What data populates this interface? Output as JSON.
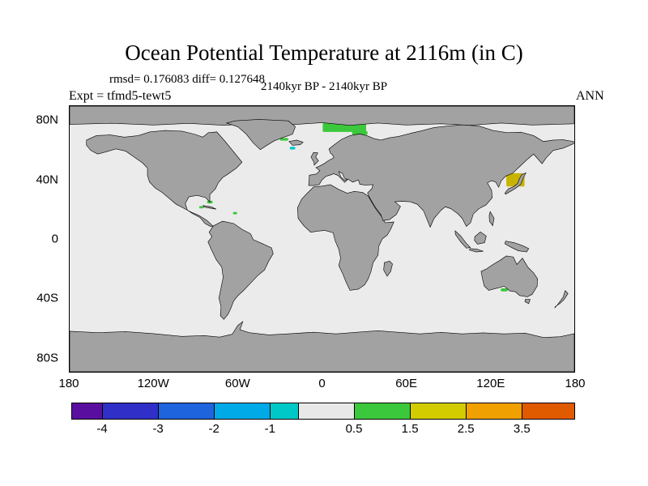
{
  "header": {
    "title": "Ocean Potential Temperature at 2116m (in C)",
    "stats": "rmsd= 0.176083 diff= 0.127648",
    "period": "2140kyr BP - 2140kyr BP",
    "experiment": "Expt = tfmd5-tewt5",
    "season": "ANN"
  },
  "colors": {
    "ocean": "#EBEBEB",
    "land": "#A2A2A2",
    "coastline": "#000000",
    "background": "#FFFFFF"
  },
  "map": {
    "lat_ticks": [
      {
        "label": "80N",
        "lat": 80
      },
      {
        "label": "40N",
        "lat": 40
      },
      {
        "label": "0",
        "lat": 0
      },
      {
        "label": "40S",
        "lat": -40
      },
      {
        "label": "80S",
        "lat": -80
      }
    ],
    "lon_ticks": [
      {
        "label": "180",
        "lon": -180
      },
      {
        "label": "120W",
        "lon": -120
      },
      {
        "label": "60W",
        "lon": -60
      },
      {
        "label": "0",
        "lon": 0
      },
      {
        "label": "60E",
        "lon": 60
      },
      {
        "label": "120E",
        "lon": 120
      },
      {
        "label": "180",
        "lon": 180
      }
    ]
  },
  "colorbar": {
    "segments": [
      {
        "color": "#5A0EA0",
        "width": 0.55,
        "range": "< -4"
      },
      {
        "color": "#3030C8",
        "width": 1,
        "range": "-4 to -3"
      },
      {
        "color": "#1E64DC",
        "width": 1,
        "range": "-3 to -2"
      },
      {
        "color": "#00AAE6",
        "width": 1,
        "range": "-2 to -1"
      },
      {
        "color": "#00C8C8",
        "width": 0.5,
        "range": "-1 to -0.5"
      },
      {
        "color": "#E8E8E8",
        "width": 1,
        "range": "-0.5 to 0.5"
      },
      {
        "color": "#3CC83C",
        "width": 1,
        "range": "0.5 to 1.5"
      },
      {
        "color": "#D2CC00",
        "width": 1,
        "range": "1.5 to 2.5"
      },
      {
        "color": "#F0A000",
        "width": 1,
        "range": "2.5 to 3.5"
      },
      {
        "color": "#E05A00",
        "width": 0.95,
        "range": "> 3.5"
      }
    ],
    "ticks": [
      {
        "label": "-4",
        "boundary": 1
      },
      {
        "label": "-3",
        "boundary": 2
      },
      {
        "label": "-2",
        "boundary": 3
      },
      {
        "label": "-1",
        "boundary": 4
      },
      {
        "label": "0.5",
        "boundary": 6
      },
      {
        "label": "1.5",
        "boundary": 7
      },
      {
        "label": "2.5",
        "boundary": 8
      },
      {
        "label": "3.5",
        "boundary": 9
      }
    ]
  },
  "chart_data": {
    "type": "heatmap",
    "title": "Ocean Potential Temperature at 2116m (in C)",
    "units": "C",
    "depth_m": 2116,
    "season": "ANN",
    "experiment_difference": "tfmd5-tewt5",
    "period": "2140kyr BP - 2140kyr BP",
    "rmsd": 0.176083,
    "diff": 0.127648,
    "contour_levels": [
      -4,
      -3,
      -2,
      -1,
      -0.5,
      0.5,
      1.5,
      2.5,
      3.5
    ],
    "x_axis": {
      "tick_labels": [
        "180",
        "120W",
        "60W",
        "0",
        "60E",
        "120E",
        "180"
      ],
      "range_deg": [
        -180,
        180
      ]
    },
    "y_axis": {
      "tick_labels": [
        "80N",
        "40N",
        "0",
        "40S",
        "80S"
      ],
      "range_deg": [
        -90,
        90
      ]
    },
    "background_field": "-0.5 to 0.5 (near zero) over most of the ocean; land and shallow seas masked gray",
    "anomalies": [
      {
        "region": "Norwegian-Barents Sea",
        "lon": 16,
        "lat": 75.5,
        "lon_span": 31,
        "lat_span": 6,
        "level": "0.5 to 1.5",
        "color": "#3CC83C"
      },
      {
        "region": "Barents Sea south lobe",
        "lon": 27,
        "lat": 71.8,
        "lon_span": 11,
        "lat_span": 2.6,
        "level": "0.5 to 1.5",
        "color": "#3CC83C"
      },
      {
        "region": "Denmark Strait",
        "lon": -27,
        "lat": 67.5,
        "lon_span": 6,
        "lat_span": 1.8,
        "level": "0.5 to 1.5",
        "color": "#3CC83C"
      },
      {
        "region": "South of Iceland",
        "lon": -21,
        "lat": 61.5,
        "lon_span": 4,
        "lat_span": 1.8,
        "level": "-1 to -0.5",
        "color": "#00C8C8"
      },
      {
        "region": "Sea of Japan",
        "lon": 138,
        "lat": 40,
        "lon_span": 13,
        "lat_span": 9,
        "level": "1.5 to 2.5",
        "color": "#C8B400"
      },
      {
        "region": "Bahamas / Gulf Stream",
        "lon": -80,
        "lat": 25,
        "lon_span": 4,
        "lat_span": 1.8,
        "level": "0.5 to 1.5",
        "color": "#3CC83C"
      },
      {
        "region": "Cayman Sea",
        "lon": -86,
        "lat": 21.5,
        "lon_span": 3.2,
        "lat_span": 1.6,
        "level": "0.5 to 1.5",
        "color": "#3CC83C"
      },
      {
        "region": "Eastern Caribbean",
        "lon": -62,
        "lat": 17.5,
        "lon_span": 3,
        "lat_span": 1.6,
        "level": "0.5 to 1.5",
        "color": "#3CC83C"
      },
      {
        "region": "Great Australian Bight",
        "lon": 130,
        "lat": -34.5,
        "lon_span": 5,
        "lat_span": 2,
        "level": "0.5 to 1.5",
        "color": "#3CC83C"
      }
    ]
  }
}
